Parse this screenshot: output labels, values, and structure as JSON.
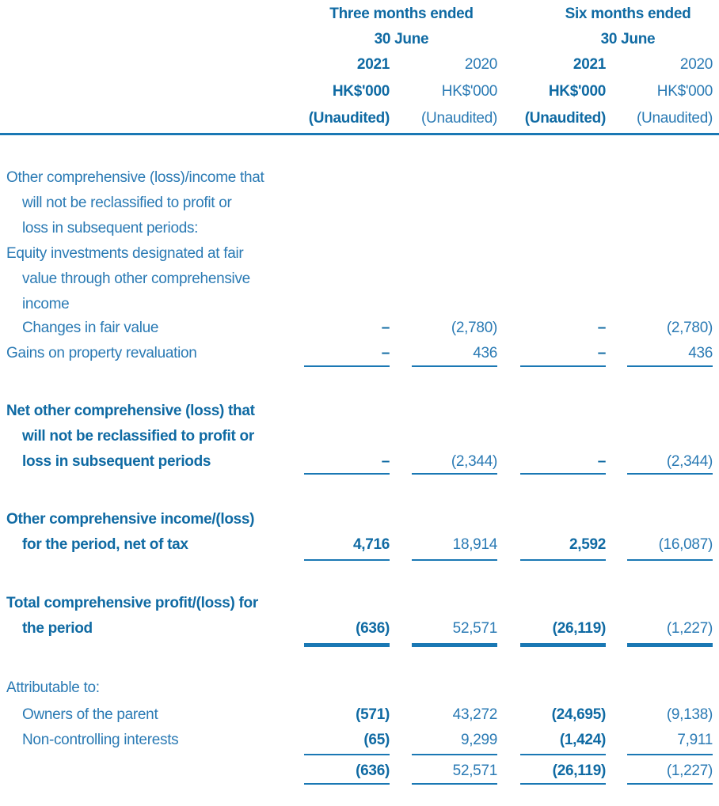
{
  "header": {
    "groups": [
      [
        "Three months ended",
        "30 June"
      ],
      [
        "Six months ended",
        "30 June"
      ]
    ],
    "columns": [
      [
        "2021",
        "HK$'000",
        "(Unaudited)"
      ],
      [
        "2020",
        "HK$'000",
        "(Unaudited)"
      ],
      [
        "2021",
        "HK$'000",
        "(Unaudited)"
      ],
      [
        "2020",
        "HK$'000",
        "(Unaudited)"
      ]
    ]
  },
  "rows": [
    {
      "label": [
        "Other comprehensive (loss)/income that",
        "will not be reclassified to profit or",
        "loss in subsequent periods:"
      ]
    },
    {
      "label": [
        "Equity investments designated at fair",
        "value through other comprehensive",
        "income"
      ]
    },
    {
      "label": [
        "Changes in fair value"
      ],
      "values": [
        "–",
        "(2,780)",
        "–",
        "(2,780)"
      ]
    },
    {
      "label": [
        "Gains on property revaluation"
      ],
      "values": [
        "–",
        "436",
        "–",
        "436"
      ]
    },
    {
      "label": [
        "Net other comprehensive (loss) that",
        "will not be reclassified to profit or",
        "loss in subsequent periods"
      ],
      "values": [
        "–",
        "(2,344)",
        "–",
        "(2,344)"
      ]
    },
    {
      "label": [
        "Other comprehensive income/(loss)",
        "for the period, net of tax"
      ],
      "values": [
        "4,716",
        "18,914",
        "2,592",
        "(16,087)"
      ]
    },
    {
      "label": [
        "Total comprehensive profit/(loss) for",
        "the period"
      ],
      "values": [
        "(636)",
        "52,571",
        "(26,119)",
        "(1,227)"
      ]
    },
    {
      "label": [
        "Attributable to:"
      ]
    },
    {
      "label": [
        "Owners of the parent"
      ],
      "values": [
        "(571)",
        "43,272",
        "(24,695)",
        "(9,138)"
      ]
    },
    {
      "label": [
        "Non-controlling interests"
      ],
      "values": [
        "(65)",
        "9,299",
        "(1,424)",
        "7,911"
      ]
    },
    {
      "values": [
        "(636)",
        "52,571",
        "(26,119)",
        "(1,227)"
      ]
    }
  ]
}
